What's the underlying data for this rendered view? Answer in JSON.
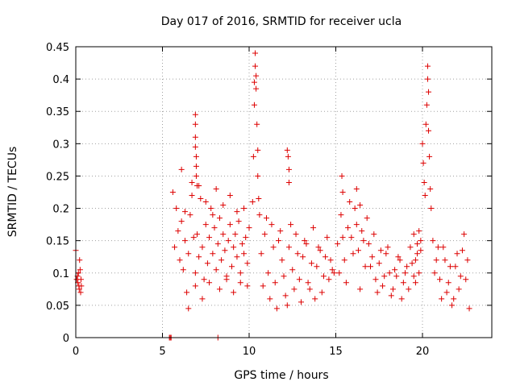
{
  "chart_data": {
    "type": "scatter",
    "title": "Day 017 of 2016, SRMTID for receiver ucla",
    "xlabel": "GPS time / hours",
    "ylabel": "SRMTID / TECUs",
    "xlim": [
      0,
      24
    ],
    "ylim": [
      0,
      0.45
    ],
    "x_ticks": [
      0,
      5,
      10,
      15,
      20
    ],
    "x_tick_labels": [
      "0",
      "5",
      "10",
      "15",
      "20"
    ],
    "y_ticks": [
      0,
      0.05,
      0.1,
      0.15,
      0.2,
      0.25,
      0.3,
      0.35,
      0.4,
      0.45
    ],
    "y_tick_labels": [
      "0",
      "0.05",
      "0.1",
      "0.15",
      "0.2",
      "0.25",
      "0.3",
      "0.35",
      "0.4",
      "0.45"
    ],
    "grid": true,
    "marker": "+",
    "series": [
      {
        "name": "SRMTID",
        "color": "#dd0000",
        "x": [
          0.0,
          0.05,
          0.1,
          0.12,
          0.15,
          0.18,
          0.2,
          0.22,
          0.25,
          0.28,
          0.3,
          0.32,
          5.4,
          5.45,
          5.5,
          8.2,
          5.6,
          5.7,
          5.8,
          5.9,
          6.0,
          6.1,
          6.2,
          6.3,
          6.4,
          6.5,
          6.6,
          6.7,
          6.8,
          6.9,
          7.0,
          7.1,
          7.2,
          7.3,
          7.4,
          7.5,
          7.6,
          7.7,
          7.8,
          7.9,
          8.0,
          8.1,
          8.2,
          8.3,
          8.4,
          8.5,
          8.6,
          8.7,
          8.8,
          8.9,
          9.0,
          9.1,
          9.2,
          9.3,
          9.4,
          9.5,
          9.6,
          9.7,
          9.8,
          9.9,
          10.0,
          6.1,
          6.3,
          6.5,
          6.7,
          6.9,
          7.1,
          7.3,
          7.5,
          7.7,
          7.9,
          8.1,
          8.3,
          8.5,
          8.7,
          8.9,
          9.1,
          9.3,
          9.5,
          9.7,
          9.9,
          6.9,
          6.9,
          6.9,
          6.9,
          6.95,
          6.95,
          6.95,
          7.0,
          10.2,
          10.25,
          10.3,
          10.3,
          10.35,
          10.35,
          10.4,
          10.4,
          10.45,
          10.5,
          10.5,
          10.55,
          10.6,
          10.7,
          10.9,
          11.1,
          11.3,
          11.5,
          11.7,
          11.9,
          12.1,
          12.3,
          12.5,
          12.7,
          12.9,
          13.1,
          13.3,
          13.5,
          13.7,
          13.9,
          14.1,
          14.3,
          14.5,
          14.7,
          14.9,
          10.8,
          11.0,
          11.2,
          11.4,
          11.6,
          11.8,
          12.0,
          12.2,
          12.4,
          12.6,
          12.8,
          13.0,
          13.2,
          13.4,
          13.6,
          13.8,
          14.0,
          14.2,
          14.4,
          14.6,
          14.8,
          12.2,
          12.25,
          12.3,
          12.3,
          15.1,
          15.3,
          15.5,
          15.7,
          15.9,
          16.1,
          16.3,
          16.5,
          16.7,
          16.9,
          17.1,
          17.3,
          17.5,
          17.7,
          17.9,
          18.1,
          18.3,
          18.5,
          18.7,
          18.9,
          19.1,
          19.3,
          19.5,
          19.7,
          19.9,
          15.2,
          15.4,
          15.6,
          15.8,
          16.0,
          16.2,
          16.4,
          16.6,
          16.8,
          17.0,
          17.2,
          17.4,
          17.6,
          17.8,
          18.0,
          18.2,
          18.4,
          18.6,
          18.8,
          19.0,
          19.2,
          19.4,
          19.6,
          19.8,
          15.35,
          15.4,
          16.2,
          16.4,
          20.0,
          20.05,
          20.1,
          20.15,
          20.2,
          20.25,
          20.3,
          20.3,
          20.35,
          20.35,
          20.4,
          20.45,
          20.5,
          20.6,
          20.8,
          21.0,
          21.2,
          21.4,
          21.6,
          21.8,
          22.0,
          22.2,
          22.4,
          22.6,
          20.7,
          20.9,
          21.1,
          21.3,
          21.5,
          21.7,
          21.9,
          22.1,
          22.3,
          22.5,
          22.7,
          19.5,
          19.6,
          19.7,
          19.8,
          19.9
        ],
        "y": [
          0.135,
          0.09,
          0.095,
          0.085,
          0.1,
          0.08,
          0.075,
          0.12,
          0.105,
          0.07,
          0.09,
          0.08,
          0.0,
          0.0,
          0.0,
          0.0,
          0.225,
          0.14,
          0.2,
          0.165,
          0.12,
          0.18,
          0.105,
          0.15,
          0.07,
          0.13,
          0.19,
          0.24,
          0.155,
          0.1,
          0.16,
          0.125,
          0.215,
          0.14,
          0.09,
          0.175,
          0.115,
          0.155,
          0.2,
          0.13,
          0.17,
          0.105,
          0.145,
          0.185,
          0.12,
          0.16,
          0.135,
          0.095,
          0.15,
          0.175,
          0.11,
          0.14,
          0.16,
          0.125,
          0.18,
          0.1,
          0.145,
          0.13,
          0.155,
          0.115,
          0.17,
          0.26,
          0.195,
          0.045,
          0.22,
          0.08,
          0.235,
          0.06,
          0.21,
          0.085,
          0.19,
          0.23,
          0.075,
          0.205,
          0.09,
          0.22,
          0.07,
          0.195,
          0.085,
          0.2,
          0.08,
          0.345,
          0.33,
          0.31,
          0.295,
          0.28,
          0.265,
          0.25,
          0.235,
          0.21,
          0.28,
          0.36,
          0.395,
          0.42,
          0.44,
          0.405,
          0.385,
          0.33,
          0.29,
          0.25,
          0.215,
          0.19,
          0.13,
          0.16,
          0.1,
          0.175,
          0.085,
          0.15,
          0.12,
          0.065,
          0.14,
          0.105,
          0.16,
          0.09,
          0.125,
          0.145,
          0.075,
          0.17,
          0.11,
          0.135,
          0.095,
          0.155,
          0.12,
          0.1,
          0.08,
          0.185,
          0.06,
          0.14,
          0.045,
          0.165,
          0.095,
          0.05,
          0.175,
          0.075,
          0.13,
          0.055,
          0.15,
          0.085,
          0.115,
          0.06,
          0.14,
          0.07,
          0.125,
          0.09,
          0.105,
          0.29,
          0.28,
          0.26,
          0.24,
          0.145,
          0.19,
          0.12,
          0.17,
          0.155,
          0.2,
          0.135,
          0.165,
          0.11,
          0.145,
          0.125,
          0.09,
          0.115,
          0.08,
          0.13,
          0.1,
          0.075,
          0.095,
          0.12,
          0.085,
          0.11,
          0.14,
          0.095,
          0.13,
          0.15,
          0.1,
          0.155,
          0.085,
          0.21,
          0.13,
          0.175,
          0.075,
          0.15,
          0.185,
          0.11,
          0.16,
          0.07,
          0.135,
          0.095,
          0.14,
          0.065,
          0.105,
          0.125,
          0.06,
          0.1,
          0.075,
          0.115,
          0.085,
          0.165,
          0.25,
          0.225,
          0.23,
          0.205,
          0.3,
          0.27,
          0.24,
          0.22,
          0.33,
          0.36,
          0.4,
          0.42,
          0.38,
          0.32,
          0.28,
          0.23,
          0.2,
          0.15,
          0.12,
          0.09,
          0.14,
          0.07,
          0.11,
          0.06,
          0.13,
          0.095,
          0.16,
          0.12,
          0.1,
          0.14,
          0.06,
          0.12,
          0.085,
          0.05,
          0.11,
          0.075,
          0.135,
          0.09,
          0.045,
          0.16,
          0.12,
          0.145,
          0.1,
          0.135
        ]
      }
    ]
  }
}
